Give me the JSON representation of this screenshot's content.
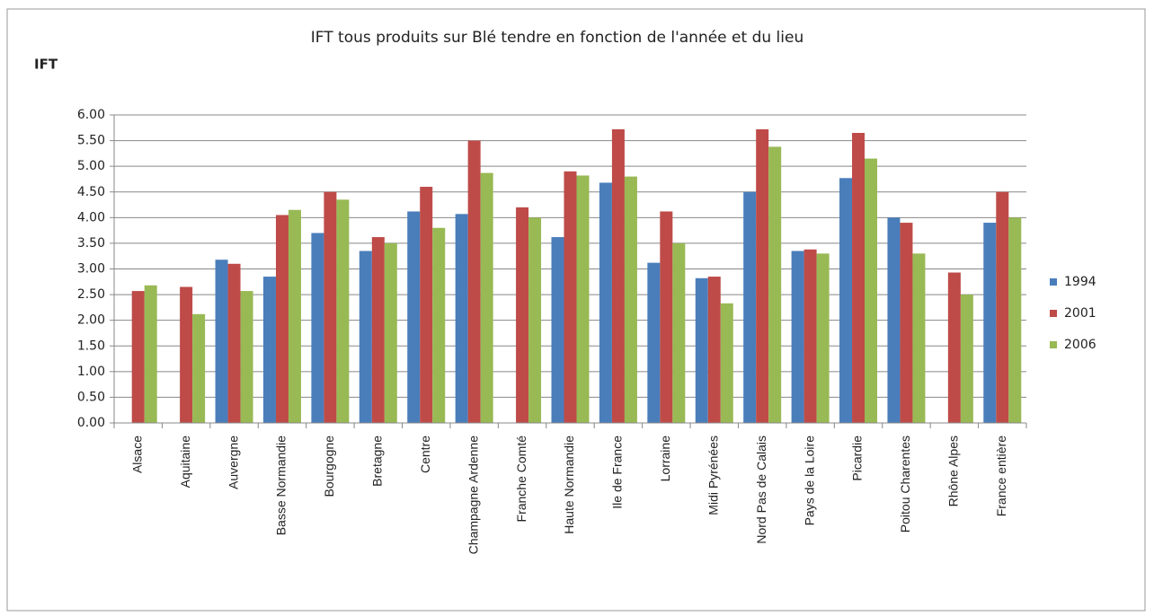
{
  "chart_data": {
    "type": "bar",
    "title": "IFT tous produits sur Blé tendre en fonction de l'année et du lieu",
    "y_label": "IFT",
    "categories": [
      "Alsace",
      "Aquitaine",
      "Auvergne",
      "Basse Normandie",
      "Bourgogne",
      "Bretagne",
      "Centre",
      "Champagne Ardenne",
      "Franche Comté",
      "Haute Normandie",
      "Ile de France",
      "Lorraine",
      "Midi Pyrénées",
      "Nord Pas de Calais",
      "Pays de la Loire",
      "Picardie",
      "Poitou Charentes",
      "Rhône Alpes",
      "France entière"
    ],
    "series": [
      {
        "name": "1994",
        "color": "#4a7ebb",
        "values": [
          null,
          null,
          3.18,
          2.85,
          3.7,
          3.35,
          4.12,
          4.07,
          null,
          3.62,
          4.68,
          3.12,
          2.82,
          4.5,
          3.35,
          4.77,
          4.0,
          null,
          3.9
        ]
      },
      {
        "name": "2001",
        "color": "#be4b48",
        "values": [
          2.57,
          2.65,
          3.1,
          4.05,
          4.5,
          3.62,
          4.6,
          5.5,
          4.2,
          4.9,
          5.72,
          4.12,
          2.85,
          5.72,
          3.38,
          5.65,
          3.9,
          2.93,
          4.5
        ]
      },
      {
        "name": "2006",
        "color": "#98b954",
        "values": [
          2.68,
          2.12,
          2.57,
          4.15,
          4.35,
          3.5,
          3.8,
          4.87,
          4.0,
          4.82,
          4.8,
          3.5,
          2.33,
          5.38,
          3.3,
          5.15,
          3.3,
          2.5,
          4.0
        ]
      }
    ],
    "ylim": [
      0,
      6
    ],
    "yticks": [
      {
        "value": 0,
        "label": "0.00"
      },
      {
        "value": 0.5,
        "label": "0.50"
      },
      {
        "value": 1,
        "label": "1.00"
      },
      {
        "value": 1.5,
        "label": "1.50"
      },
      {
        "value": 2,
        "label": "2.00"
      },
      {
        "value": 2.5,
        "label": "2.50"
      },
      {
        "value": 3,
        "label": "3.00"
      },
      {
        "value": 3.5,
        "label": "3.50"
      },
      {
        "value": 4,
        "label": "4.00"
      },
      {
        "value": 4.5,
        "label": "4.50"
      },
      {
        "value": 5,
        "label": "5.00"
      },
      {
        "value": 5.5,
        "label": "5.50"
      },
      {
        "value": 6,
        "label": "6.00"
      }
    ],
    "grid": true,
    "legend": "right"
  }
}
